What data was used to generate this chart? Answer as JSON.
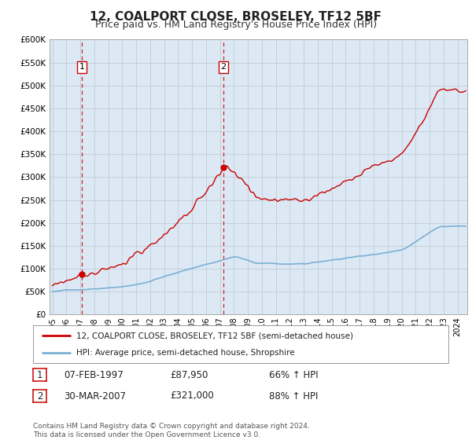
{
  "title": "12, COALPORT CLOSE, BROSELEY, TF12 5BF",
  "subtitle": "Price paid vs. HM Land Registry's House Price Index (HPI)",
  "background_color": "#ffffff",
  "plot_bg_color": "#dce9f5",
  "red_line_color": "#cc0000",
  "blue_line_color": "#7bafd4",
  "sale1_date_num": 1997.1,
  "sale1_price": 87950,
  "sale1_label": "1",
  "sale2_date_num": 2007.25,
  "sale2_price": 321000,
  "sale2_label": "2",
  "legend_line1": "12, COALPORT CLOSE, BROSELEY, TF12 5BF (semi-detached house)",
  "legend_line2": "HPI: Average price, semi-detached house, Shropshire",
  "table_row1": [
    "1",
    "07-FEB-1997",
    "£87,950",
    "66% ↑ HPI"
  ],
  "table_row2": [
    "2",
    "30-MAR-2007",
    "£321,000",
    "88% ↑ HPI"
  ],
  "footer": "Contains HM Land Registry data © Crown copyright and database right 2024.\nThis data is licensed under the Open Government Licence v3.0.",
  "ylim": [
    0,
    600000
  ],
  "ytick_vals": [
    0,
    50000,
    100000,
    150000,
    200000,
    250000,
    300000,
    350000,
    400000,
    450000,
    500000,
    550000,
    600000
  ],
  "ytick_labels": [
    "£0",
    "£50K",
    "£100K",
    "£150K",
    "£200K",
    "£250K",
    "£300K",
    "£350K",
    "£400K",
    "£450K",
    "£500K",
    "£550K",
    "£600K"
  ],
  "xlim_start": 1994.8,
  "xlim_end": 2024.7
}
